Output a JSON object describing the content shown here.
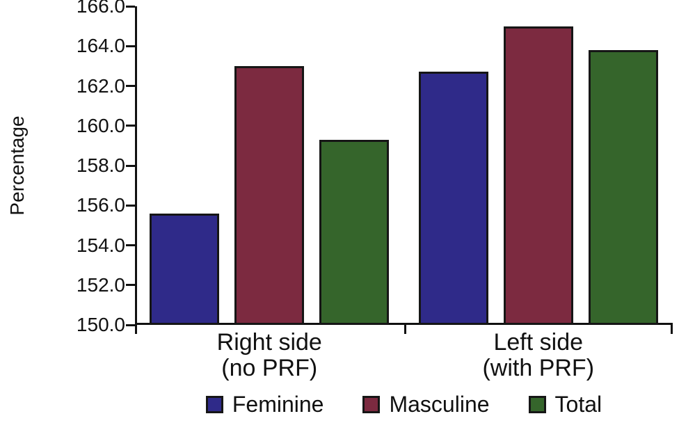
{
  "figure": {
    "background": "#ffffff",
    "text_color": "#111111",
    "axis_color": "#111111"
  },
  "chart_data": {
    "type": "bar",
    "title": "",
    "xlabel": "",
    "ylabel": "Percentage",
    "categories": [
      "Right side (no PRF)",
      "Left side (with PRF)"
    ],
    "category_lines": [
      [
        "Right side",
        "(no PRF)"
      ],
      [
        "Left side",
        "(with PRF)"
      ]
    ],
    "series": [
      {
        "name": "Feminine",
        "color": "#2F2A89",
        "values": [
          155.6,
          162.7
        ]
      },
      {
        "name": "Masculine",
        "color": "#7C2A40",
        "values": [
          163.0,
          165.0
        ]
      },
      {
        "name": "Total",
        "color": "#35652B",
        "values": [
          159.3,
          163.8
        ]
      }
    ],
    "ylim": [
      150.0,
      166.0
    ],
    "ytick_step": 2.0,
    "yticks": [
      {
        "value": 150,
        "label": "150.0"
      },
      {
        "value": 152,
        "label": "152.0"
      },
      {
        "value": 154,
        "label": "154.0"
      },
      {
        "value": 156,
        "label": "156.0"
      },
      {
        "value": 158,
        "label": "158.0"
      },
      {
        "value": 160,
        "label": "160.0"
      },
      {
        "value": 162,
        "label": "162.0"
      },
      {
        "value": 164,
        "label": "164.0"
      },
      {
        "value": 166,
        "label": "166.0"
      }
    ],
    "grid": false,
    "legend_position": "bottom",
    "bar_border_color": "#161616"
  }
}
